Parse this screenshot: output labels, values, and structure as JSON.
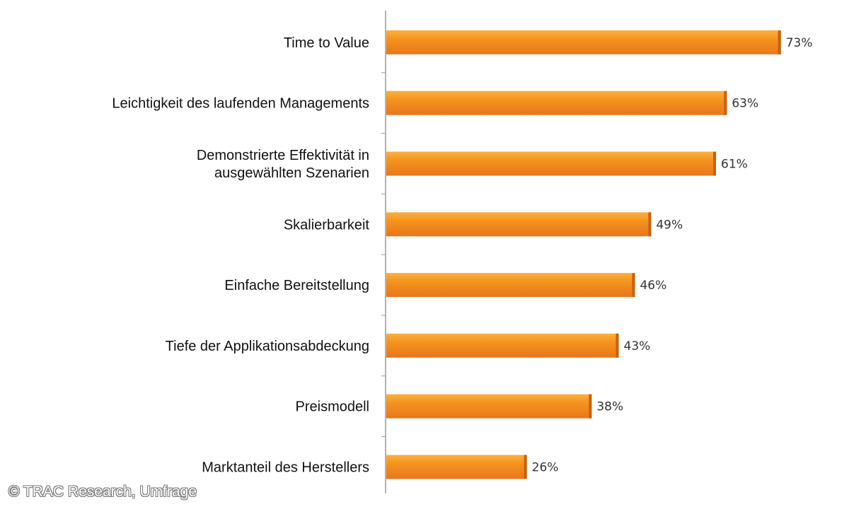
{
  "chart_data": {
    "type": "bar",
    "orientation": "horizontal",
    "categories": [
      [
        "Time to Value"
      ],
      [
        "Leichtigkeit des laufenden Managements"
      ],
      [
        "Demonstrierte Effektivität in",
        "ausgewählten Szenarien"
      ],
      [
        "Skalierbarkeit"
      ],
      [
        "Einfache Bereitstellung"
      ],
      [
        "Tiefe der Applikationsabdeckung"
      ],
      [
        "Preismodell"
      ],
      [
        "Marktanteil des Herstellers"
      ]
    ],
    "values": [
      73,
      63,
      61,
      49,
      46,
      43,
      38,
      26
    ],
    "data_labels": [
      "73%",
      "63%",
      "61%",
      "49%",
      "46%",
      "43%",
      "38%",
      "26%"
    ],
    "unit": "%",
    "xlim": [
      0,
      100
    ],
    "grid": false,
    "bar_color": "#f08a1e",
    "bar_highlight": "#fbb040"
  },
  "credit": "© TRAC Research, Umfrage"
}
